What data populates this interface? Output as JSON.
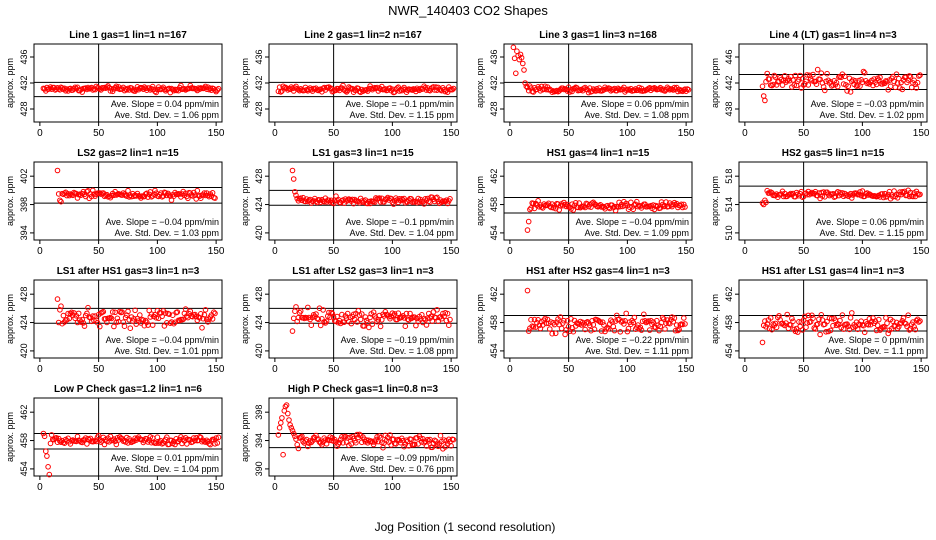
{
  "figure": {
    "title": "NWR_140403  CO2 Shapes",
    "xlabel": "Jog Position (1 second resolution)",
    "ylabel": "approx. ppm"
  },
  "chart_data": [
    {
      "type": "scatter",
      "title": "Line 1 gas=1 lin=1 n=167",
      "ylim": [
        426,
        438
      ],
      "yticks": [
        428,
        432,
        436
      ],
      "xlim": [
        -5,
        155
      ],
      "xticks": [
        0,
        50,
        100,
        150
      ],
      "vline": 50,
      "hlines": [
        429.9,
        432.1
      ],
      "slope_text": "Ave. Slope = 0.04  ppm/min",
      "std_text": "Ave. Std. Dev. = 1.06  ppm",
      "n_points": 151,
      "x_start": 3,
      "base": 431.1,
      "noise": 0.25,
      "start_values": []
    },
    {
      "type": "scatter",
      "title": "Line 2 gas=1 lin=2 n=167",
      "ylim": [
        426,
        438
      ],
      "yticks": [
        428,
        432,
        436
      ],
      "xlim": [
        -5,
        155
      ],
      "xticks": [
        0,
        50,
        100,
        150
      ],
      "vline": 50,
      "hlines": [
        429.9,
        432.1
      ],
      "slope_text": "Ave. Slope = −0.1  ppm/min",
      "std_text": "Ave. Std. Dev. = 1.15  ppm",
      "n_points": 151,
      "x_start": 3,
      "base": 431.0,
      "noise": 0.3,
      "start_values": []
    },
    {
      "type": "scatter",
      "title": "Line 3 gas=1 lin=3 n=168",
      "ylim": [
        426,
        438
      ],
      "yticks": [
        428,
        432,
        436
      ],
      "xlim": [
        -5,
        155
      ],
      "xticks": [
        0,
        50,
        100,
        150
      ],
      "vline": 50,
      "hlines": [
        429.9,
        432.1
      ],
      "slope_text": "Ave. Slope = 0.06  ppm/min",
      "std_text": "Ave. Std. Dev. = 1.08  ppm",
      "n_points": 151,
      "x_start": 3,
      "base": 431.0,
      "noise": 0.25,
      "start_values": [
        437.5,
        435.8,
        433.5,
        436.9,
        436.2,
        435.6,
        436.4,
        435.9,
        435.0,
        434.0,
        432.0,
        431.5
      ]
    },
    {
      "type": "scatter",
      "title": "Line 4 (LT) gas=1 lin=4 n=3",
      "ylim": [
        436,
        448
      ],
      "yticks": [
        438,
        442,
        446
      ],
      "xlim": [
        -5,
        155
      ],
      "xticks": [
        0,
        50,
        100,
        150
      ],
      "vline": 50,
      "hlines": [
        441.0,
        443.3
      ],
      "slope_text": "Ave. Slope = −0.03  ppm/min",
      "std_text": "Ave. Std. Dev. = 1.02  ppm",
      "n_points": 135,
      "x_start": 15,
      "base": 442.2,
      "noise": 0.8,
      "start_values": [
        441.5,
        440.0,
        439.3,
        442.2
      ]
    },
    {
      "type": "scatter",
      "title": "LS2 gas=2 lin=1 n=15",
      "ylim": [
        393,
        404
      ],
      "yticks": [
        394,
        398,
        402
      ],
      "xlim": [
        -5,
        155
      ],
      "xticks": [
        0,
        50,
        100,
        150
      ],
      "vline": 50,
      "hlines": [
        398.2,
        400.4
      ],
      "slope_text": "Ave. Slope = −0.04  ppm/min",
      "std_text": "Ave. Std. Dev. = 1.03  ppm",
      "n_points": 135,
      "x_start": 15,
      "base": 399.4,
      "noise": 0.35,
      "start_values": [
        402.8,
        399.5,
        398.6,
        398.4
      ]
    },
    {
      "type": "scatter",
      "title": "LS1 gas=3 lin=1 n=15",
      "ylim": [
        419,
        430
      ],
      "yticks": [
        420,
        424,
        428
      ],
      "xlim": [
        -5,
        155
      ],
      "xticks": [
        0,
        50,
        100,
        150
      ],
      "vline": 50,
      "hlines": [
        423.9,
        426.0
      ],
      "slope_text": "Ave. Slope = −0.1  ppm/min",
      "std_text": "Ave. Std. Dev. = 1.04  ppm",
      "n_points": 135,
      "x_start": 15,
      "base": 424.6,
      "noise": 0.3,
      "start_values": [
        428.8,
        427.6,
        425.8,
        425.3
      ]
    },
    {
      "type": "scatter",
      "title": "HS1 gas=4 lin=1 n=15",
      "ylim": [
        453,
        464
      ],
      "yticks": [
        454,
        458,
        462
      ],
      "xlim": [
        -5,
        155
      ],
      "xticks": [
        0,
        50,
        100,
        150
      ],
      "vline": 50,
      "hlines": [
        456.8,
        459.0
      ],
      "slope_text": "Ave. Slope = −0.04  ppm/min",
      "std_text": "Ave. Std. Dev. = 1.09  ppm",
      "n_points": 135,
      "x_start": 15,
      "base": 457.8,
      "noise": 0.35,
      "start_values": [
        454.4,
        455.6,
        457.3,
        457.5
      ]
    },
    {
      "type": "scatter",
      "title": "HS2 gas=5 lin=1 n=15",
      "ylim": [
        509,
        520
      ],
      "yticks": [
        510,
        514,
        518
      ],
      "xlim": [
        -5,
        155
      ],
      "xticks": [
        0,
        50,
        100,
        150
      ],
      "vline": 50,
      "hlines": [
        514.3,
        516.6
      ],
      "slope_text": "Ave. Slope = 0.06  ppm/min",
      "std_text": "Ave. Std. Dev. = 1.15  ppm",
      "n_points": 135,
      "x_start": 15,
      "base": 515.4,
      "noise": 0.35,
      "start_values": [
        514.2,
        514.0,
        514.6,
        514.3
      ]
    },
    {
      "type": "scatter",
      "title": "LS1 after HS1 gas=3 lin=1 n=3",
      "ylim": [
        419,
        430
      ],
      "yticks": [
        420,
        424,
        428
      ],
      "xlim": [
        -5,
        155
      ],
      "xticks": [
        0,
        50,
        100,
        150
      ],
      "vline": 50,
      "hlines": [
        423.9,
        426.0
      ],
      "slope_text": "Ave. Slope = −0.04  ppm/min",
      "std_text": "Ave. Std. Dev. = 1.01  ppm",
      "n_points": 135,
      "x_start": 15,
      "base": 424.8,
      "noise": 0.8,
      "start_values": [
        427.3,
        424.0,
        425.8,
        426.3
      ]
    },
    {
      "type": "scatter",
      "title": "LS1 after LS2 gas=3 lin=1 n=3",
      "ylim": [
        419,
        430
      ],
      "yticks": [
        420,
        424,
        428
      ],
      "xlim": [
        -5,
        155
      ],
      "xticks": [
        0,
        50,
        100,
        150
      ],
      "vline": 50,
      "hlines": [
        423.9,
        426.0
      ],
      "slope_text": "Ave. Slope = −0.19  ppm/min",
      "std_text": "Ave. Std. Dev. = 1.08  ppm",
      "n_points": 135,
      "x_start": 15,
      "base": 424.8,
      "noise": 0.8,
      "start_values": [
        422.8,
        424.6,
        425.6,
        426.2
      ]
    },
    {
      "type": "scatter",
      "title": "HS1 after HS2 gas=4 lin=1 n=3",
      "ylim": [
        453,
        464
      ],
      "yticks": [
        454,
        458,
        462
      ],
      "xlim": [
        -5,
        155
      ],
      "xticks": [
        0,
        50,
        100,
        150
      ],
      "vline": 50,
      "hlines": [
        456.8,
        459.0
      ],
      "slope_text": "Ave. Slope = −0.22  ppm/min",
      "std_text": "Ave. Std. Dev. = 1.11  ppm",
      "n_points": 135,
      "x_start": 15,
      "base": 457.8,
      "noise": 0.8,
      "start_values": [
        462.5,
        456.8,
        457.2,
        458.4
      ]
    },
    {
      "type": "scatter",
      "title": "HS1 after LS1 gas=4 lin=1 n=3",
      "ylim": [
        453,
        464
      ],
      "yticks": [
        454,
        458,
        462
      ],
      "xlim": [
        -5,
        155
      ],
      "xticks": [
        0,
        50,
        100,
        150
      ],
      "vline": 50,
      "hlines": [
        456.8,
        459.0
      ],
      "slope_text": "Ave. Slope = 0  ppm/min",
      "std_text": "Ave. Std. Dev. = 1.1  ppm",
      "n_points": 135,
      "x_start": 15,
      "base": 457.8,
      "noise": 0.8,
      "start_values": [
        455.2,
        457.6,
        458.2,
        457.4
      ]
    },
    {
      "type": "scatter",
      "title": "Low P Check gas=1.2 lin=1 n=6",
      "ylim": [
        453,
        464
      ],
      "yticks": [
        454,
        458,
        462
      ],
      "xlim": [
        -5,
        155
      ],
      "xticks": [
        0,
        50,
        100,
        150
      ],
      "vline": 50,
      "hlines": [
        456.8,
        459.0
      ],
      "slope_text": "Ave. Slope = 0.01  ppm/min",
      "std_text": "Ave. Std. Dev. = 1.04  ppm",
      "n_points": 151,
      "x_start": 3,
      "base": 458.0,
      "noise": 0.35,
      "start_values": [
        459.0,
        458.6,
        456.5,
        455.8,
        454.3,
        453.2,
        457.6,
        458.8
      ]
    },
    {
      "type": "scatter",
      "title": "High P Check gas=1 lin=0.8 n=3",
      "ylim": [
        389,
        400
      ],
      "yticks": [
        390,
        394,
        398
      ],
      "xlim": [
        -5,
        155
      ],
      "xticks": [
        0,
        50,
        100,
        150
      ],
      "vline": 50,
      "hlines": [
        393.0,
        395.0
      ],
      "slope_text": "Ave. Slope = −0.09  ppm/min",
      "std_text": "Ave. Std. Dev. = 0.76  ppm",
      "n_points": 151,
      "x_start": 3,
      "base": 393.9,
      "noise": 0.6,
      "start_values": [
        394.8,
        395.8,
        396.5,
        397.2,
        392.0,
        398.2,
        398.8,
        399.0,
        397.8,
        396.9,
        396.2,
        395.8,
        395.4,
        395.0,
        394.6,
        394.2
      ]
    }
  ]
}
